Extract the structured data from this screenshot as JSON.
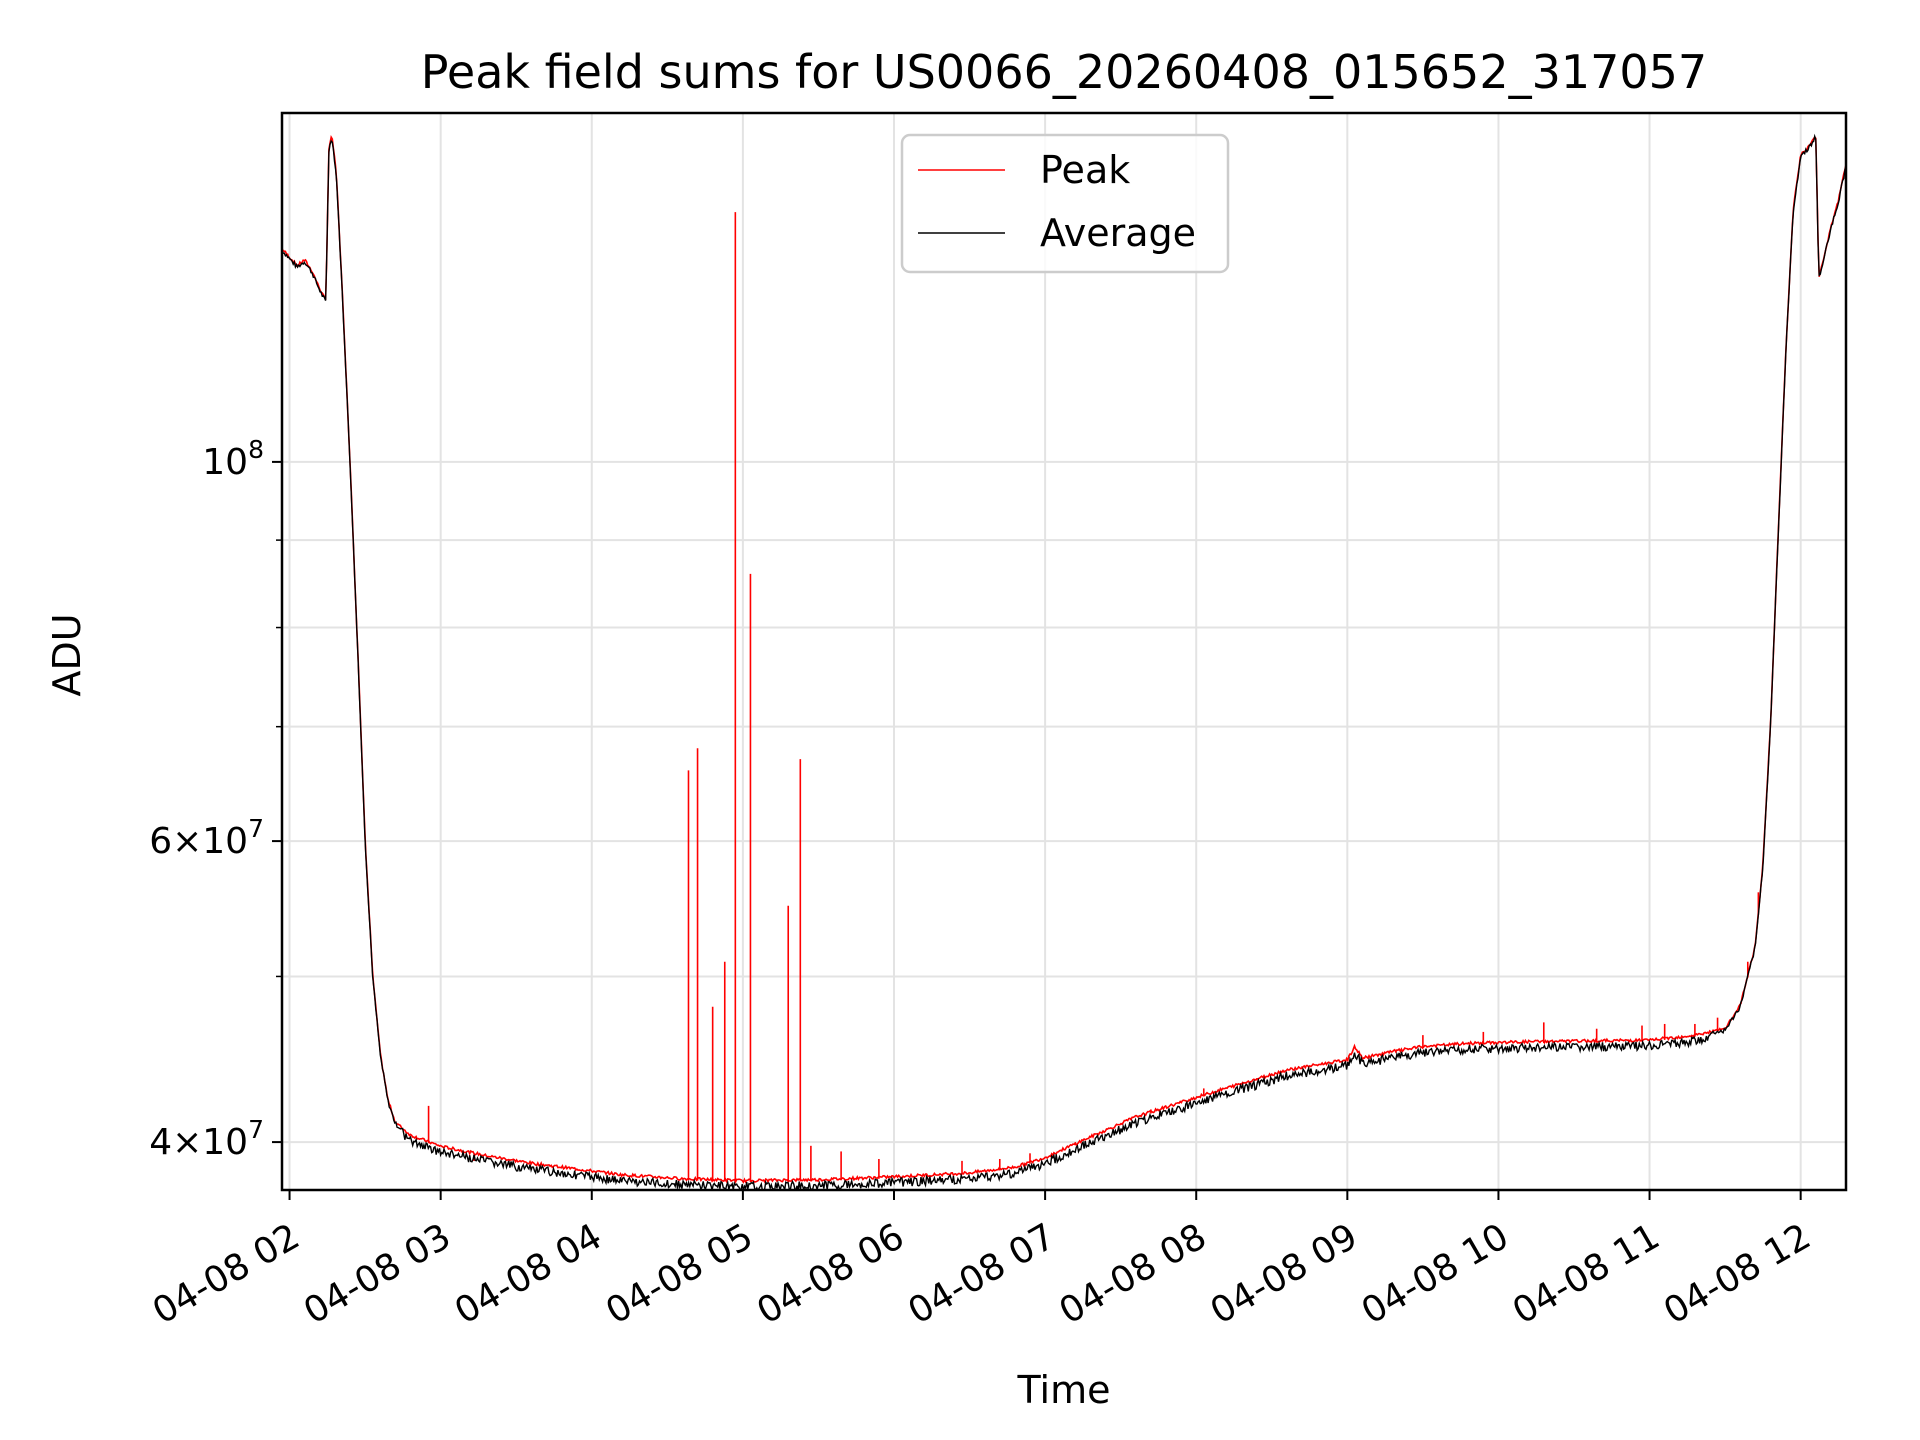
{
  "chart_data": {
    "type": "line",
    "title": "Peak field sums for US0066_20260408_015652_317057",
    "xlabel": "Time",
    "ylabel": "ADU",
    "yscale": "log",
    "xlim": [
      1.95,
      12.3
    ],
    "ylim": [
      37500000,
      160000000
    ],
    "grid": true,
    "legend_position": "top-center",
    "x_ticks": [
      {
        "value": 2,
        "label": "04-08 02"
      },
      {
        "value": 3,
        "label": "04-08 03"
      },
      {
        "value": 4,
        "label": "04-08 04"
      },
      {
        "value": 5,
        "label": "04-08 05"
      },
      {
        "value": 6,
        "label": "04-08 06"
      },
      {
        "value": 7,
        "label": "04-08 07"
      },
      {
        "value": 8,
        "label": "04-08 08"
      },
      {
        "value": 9,
        "label": "04-08 09"
      },
      {
        "value": 10,
        "label": "04-08 10"
      },
      {
        "value": 11,
        "label": "04-08 11"
      },
      {
        "value": 12,
        "label": "04-08 12"
      }
    ],
    "y_ticks_major": [
      {
        "value": 40000000,
        "mantissa": "4",
        "exponent": "7"
      },
      {
        "value": 60000000,
        "mantissa": "6",
        "exponent": "7"
      },
      {
        "value": 100000000,
        "mantissa": "",
        "exponent": "8"
      }
    ],
    "y_ticks_minor": [
      50000000,
      70000000,
      80000000,
      90000000
    ],
    "baseline_points": [
      [
        1.95,
        133000000
      ],
      [
        2.05,
        130000000
      ],
      [
        2.1,
        131000000
      ],
      [
        2.15,
        129000000
      ],
      [
        2.2,
        126000000
      ],
      [
        2.24,
        124000000
      ],
      [
        2.26,
        152000000
      ],
      [
        2.28,
        155000000
      ],
      [
        2.31,
        147000000
      ],
      [
        2.35,
        125000000
      ],
      [
        2.4,
        100000000
      ],
      [
        2.45,
        78000000
      ],
      [
        2.5,
        60000000
      ],
      [
        2.55,
        50000000
      ],
      [
        2.6,
        45000000
      ],
      [
        2.65,
        42300000
      ],
      [
        2.7,
        41000000
      ],
      [
        2.8,
        40300000
      ],
      [
        3.0,
        39700000
      ],
      [
        3.3,
        39200000
      ],
      [
        3.6,
        38800000
      ],
      [
        3.9,
        38500000
      ],
      [
        4.2,
        38200000
      ],
      [
        4.6,
        38000000
      ],
      [
        5.0,
        37900000
      ],
      [
        5.5,
        37950000
      ],
      [
        6.0,
        38100000
      ],
      [
        6.5,
        38300000
      ],
      [
        6.8,
        38600000
      ],
      [
        7.0,
        39100000
      ],
      [
        7.3,
        40200000
      ],
      [
        7.6,
        41300000
      ],
      [
        8.0,
        42400000
      ],
      [
        8.3,
        43200000
      ],
      [
        8.6,
        44000000
      ],
      [
        9.0,
        44600000
      ],
      [
        9.05,
        45400000
      ],
      [
        9.1,
        44700000
      ],
      [
        9.3,
        45100000
      ],
      [
        9.5,
        45400000
      ],
      [
        9.8,
        45600000
      ],
      [
        10.2,
        45700000
      ],
      [
        10.6,
        45750000
      ],
      [
        11.0,
        45800000
      ],
      [
        11.3,
        46100000
      ],
      [
        11.5,
        46500000
      ],
      [
        11.6,
        48000000
      ],
      [
        11.7,
        52000000
      ],
      [
        11.75,
        58000000
      ],
      [
        11.8,
        70000000
      ],
      [
        11.85,
        90000000
      ],
      [
        11.9,
        115000000
      ],
      [
        11.95,
        140000000
      ],
      [
        12.0,
        151000000
      ],
      [
        12.05,
        152500000
      ],
      [
        12.1,
        155000000
      ],
      [
        12.12,
        128000000
      ],
      [
        12.15,
        131000000
      ],
      [
        12.2,
        137000000
      ],
      [
        12.25,
        142000000
      ],
      [
        12.3,
        149000000
      ]
    ],
    "peak_spikes": [
      [
        2.92,
        42000000
      ],
      [
        3.22,
        39000000
      ],
      [
        3.45,
        38800000
      ],
      [
        3.55,
        38900000
      ],
      [
        4.64,
        66000000
      ],
      [
        4.7,
        68000000
      ],
      [
        4.8,
        48000000
      ],
      [
        4.88,
        51000000
      ],
      [
        4.95,
        140000000
      ],
      [
        5.05,
        86000000
      ],
      [
        5.3,
        55000000
      ],
      [
        5.38,
        67000000
      ],
      [
        5.45,
        39800000
      ],
      [
        5.65,
        39500000
      ],
      [
        5.9,
        39100000
      ],
      [
        6.45,
        39000000
      ],
      [
        6.7,
        39100000
      ],
      [
        6.9,
        39400000
      ],
      [
        7.2,
        40000000
      ],
      [
        7.7,
        41800000
      ],
      [
        8.05,
        43000000
      ],
      [
        8.4,
        43600000
      ],
      [
        8.7,
        44300000
      ],
      [
        9.5,
        46200000
      ],
      [
        9.9,
        46400000
      ],
      [
        10.3,
        47000000
      ],
      [
        10.65,
        46600000
      ],
      [
        10.95,
        46800000
      ],
      [
        11.1,
        46900000
      ],
      [
        11.3,
        46900000
      ],
      [
        11.45,
        47300000
      ],
      [
        11.65,
        51000000
      ],
      [
        11.72,
        56000000
      ]
    ],
    "series": [
      {
        "name": "Peak",
        "color": "#ff0000"
      },
      {
        "name": "Average",
        "color": "#000000"
      }
    ]
  }
}
